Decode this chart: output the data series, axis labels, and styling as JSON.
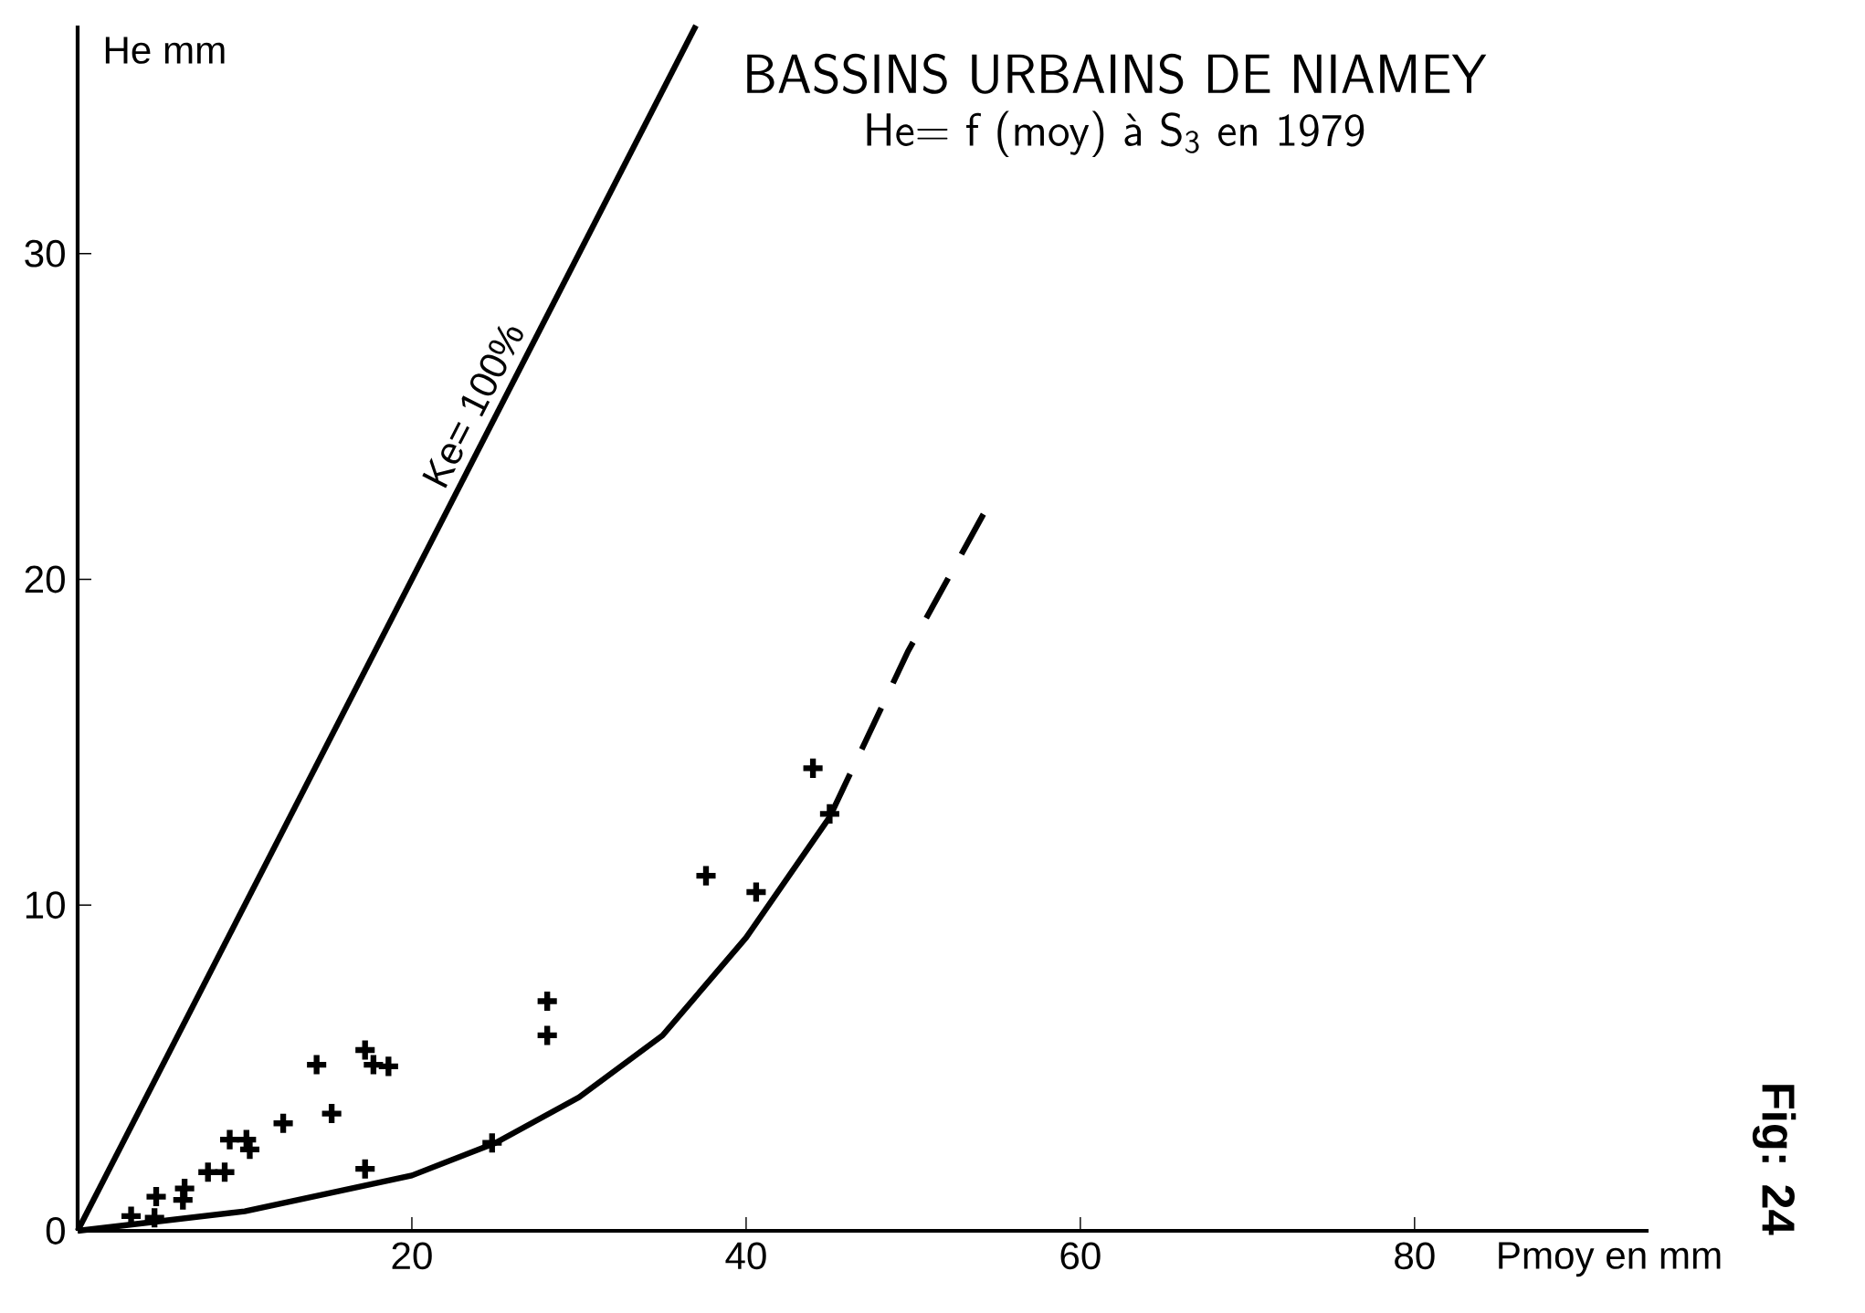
{
  "chart_data": {
    "type": "scatter",
    "title": "BASSINS URBAINS DE NIAMEY",
    "subtitle": "He= f (moy) à S$_{3}$ en 1979",
    "xlabel": "Pmoy en mm",
    "ylabel": "He mm",
    "xlim": [
      0,
      94
    ],
    "ylim": [
      0,
      37
    ],
    "xticks": [
      20,
      40,
      60,
      80
    ],
    "yticks": [
      0,
      10,
      20,
      30
    ],
    "grid": false,
    "series": [
      {
        "color": "#000000",
        "marker": "cross",
        "x": [
          3.2,
          4.6,
          4.7,
          6.3,
          6.4,
          7.8,
          8.8,
          9.1,
          10.1,
          10.3,
          12.3,
          14.3,
          15.2,
          17.2,
          17.7,
          18.6,
          17.2,
          24.8,
          28.1,
          28.1,
          37.6,
          40.6,
          44.0,
          45.0
        ],
        "values": [
          0.45,
          0.4,
          1.05,
          0.95,
          1.3,
          1.8,
          1.8,
          2.8,
          2.8,
          2.5,
          3.3,
          5.1,
          3.6,
          5.55,
          5.1,
          5.05,
          1.9,
          2.7,
          7.05,
          6.0,
          10.9,
          10.4,
          14.2,
          12.8
        ]
      },
      {
        "type": "line",
        "color": "#000000",
        "line_style": "solid",
        "x": [
          0,
          10,
          20,
          25,
          30,
          35,
          40,
          45
        ],
        "values": [
          0,
          0.6,
          1.7,
          2.7,
          4.1,
          6.0,
          9.0,
          12.7
        ]
      },
      {
        "type": "line",
        "color": "#000000",
        "line_style": "dashed",
        "x": [
          45,
          49.7,
          54.2
        ],
        "values": [
          12.7,
          17.8,
          22.0
        ]
      },
      {
        "type": "line",
        "color": "#000000",
        "line_style": "solid",
        "x": [
          0,
          37
        ],
        "values": [
          0,
          37
        ]
      }
    ],
    "annotations": [
      {
        "text": "Ke= 100%",
        "x": 25,
        "y": 25
      },
      "Fig: 24"
    ]
  }
}
